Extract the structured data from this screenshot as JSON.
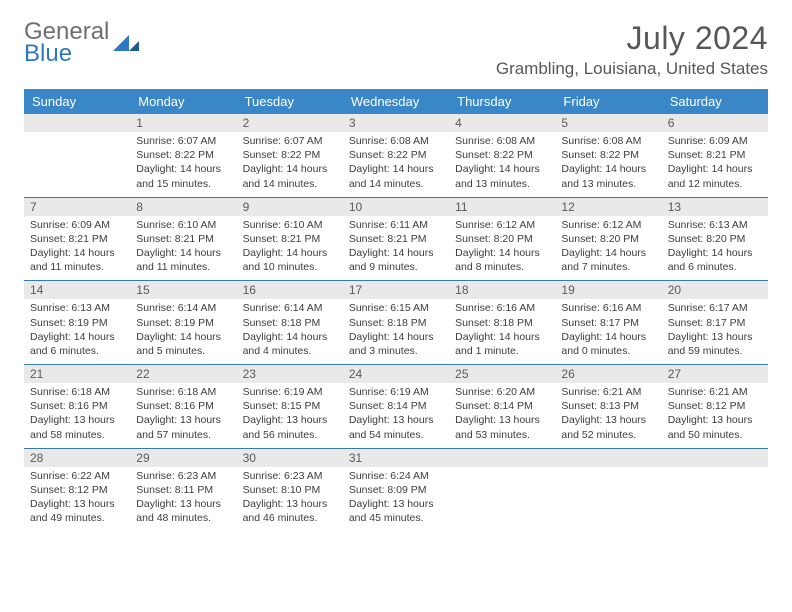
{
  "logo": {
    "word1": "General",
    "word2": "Blue"
  },
  "title": "July 2024",
  "location": "Grambling, Louisiana, United States",
  "colors": {
    "header_bg": "#3a87c8",
    "header_text": "#ffffff",
    "divider": "#3a78ad",
    "daynum_bg": "#e9e9e9",
    "text": "#3d3d3d",
    "title_text": "#575757",
    "logo_gray": "#6f6f6f",
    "logo_blue": "#2f78bd"
  },
  "weekdays": [
    "Sunday",
    "Monday",
    "Tuesday",
    "Wednesday",
    "Thursday",
    "Friday",
    "Saturday"
  ],
  "weeks": [
    {
      "days": [
        {
          "num": "",
          "lines": [
            "",
            "",
            "",
            ""
          ]
        },
        {
          "num": "1",
          "lines": [
            "Sunrise: 6:07 AM",
            "Sunset: 8:22 PM",
            "Daylight: 14 hours",
            "and 15 minutes."
          ]
        },
        {
          "num": "2",
          "lines": [
            "Sunrise: 6:07 AM",
            "Sunset: 8:22 PM",
            "Daylight: 14 hours",
            "and 14 minutes."
          ]
        },
        {
          "num": "3",
          "lines": [
            "Sunrise: 6:08 AM",
            "Sunset: 8:22 PM",
            "Daylight: 14 hours",
            "and 14 minutes."
          ]
        },
        {
          "num": "4",
          "lines": [
            "Sunrise: 6:08 AM",
            "Sunset: 8:22 PM",
            "Daylight: 14 hours",
            "and 13 minutes."
          ]
        },
        {
          "num": "5",
          "lines": [
            "Sunrise: 6:08 AM",
            "Sunset: 8:22 PM",
            "Daylight: 14 hours",
            "and 13 minutes."
          ]
        },
        {
          "num": "6",
          "lines": [
            "Sunrise: 6:09 AM",
            "Sunset: 8:21 PM",
            "Daylight: 14 hours",
            "and 12 minutes."
          ]
        }
      ]
    },
    {
      "days": [
        {
          "num": "7",
          "lines": [
            "Sunrise: 6:09 AM",
            "Sunset: 8:21 PM",
            "Daylight: 14 hours",
            "and 11 minutes."
          ]
        },
        {
          "num": "8",
          "lines": [
            "Sunrise: 6:10 AM",
            "Sunset: 8:21 PM",
            "Daylight: 14 hours",
            "and 11 minutes."
          ]
        },
        {
          "num": "9",
          "lines": [
            "Sunrise: 6:10 AM",
            "Sunset: 8:21 PM",
            "Daylight: 14 hours",
            "and 10 minutes."
          ]
        },
        {
          "num": "10",
          "lines": [
            "Sunrise: 6:11 AM",
            "Sunset: 8:21 PM",
            "Daylight: 14 hours",
            "and 9 minutes."
          ]
        },
        {
          "num": "11",
          "lines": [
            "Sunrise: 6:12 AM",
            "Sunset: 8:20 PM",
            "Daylight: 14 hours",
            "and 8 minutes."
          ]
        },
        {
          "num": "12",
          "lines": [
            "Sunrise: 6:12 AM",
            "Sunset: 8:20 PM",
            "Daylight: 14 hours",
            "and 7 minutes."
          ]
        },
        {
          "num": "13",
          "lines": [
            "Sunrise: 6:13 AM",
            "Sunset: 8:20 PM",
            "Daylight: 14 hours",
            "and 6 minutes."
          ]
        }
      ]
    },
    {
      "days": [
        {
          "num": "14",
          "lines": [
            "Sunrise: 6:13 AM",
            "Sunset: 8:19 PM",
            "Daylight: 14 hours",
            "and 6 minutes."
          ]
        },
        {
          "num": "15",
          "lines": [
            "Sunrise: 6:14 AM",
            "Sunset: 8:19 PM",
            "Daylight: 14 hours",
            "and 5 minutes."
          ]
        },
        {
          "num": "16",
          "lines": [
            "Sunrise: 6:14 AM",
            "Sunset: 8:18 PM",
            "Daylight: 14 hours",
            "and 4 minutes."
          ]
        },
        {
          "num": "17",
          "lines": [
            "Sunrise: 6:15 AM",
            "Sunset: 8:18 PM",
            "Daylight: 14 hours",
            "and 3 minutes."
          ]
        },
        {
          "num": "18",
          "lines": [
            "Sunrise: 6:16 AM",
            "Sunset: 8:18 PM",
            "Daylight: 14 hours",
            "and 1 minute."
          ]
        },
        {
          "num": "19",
          "lines": [
            "Sunrise: 6:16 AM",
            "Sunset: 8:17 PM",
            "Daylight: 14 hours",
            "and 0 minutes."
          ]
        },
        {
          "num": "20",
          "lines": [
            "Sunrise: 6:17 AM",
            "Sunset: 8:17 PM",
            "Daylight: 13 hours",
            "and 59 minutes."
          ]
        }
      ]
    },
    {
      "days": [
        {
          "num": "21",
          "lines": [
            "Sunrise: 6:18 AM",
            "Sunset: 8:16 PM",
            "Daylight: 13 hours",
            "and 58 minutes."
          ]
        },
        {
          "num": "22",
          "lines": [
            "Sunrise: 6:18 AM",
            "Sunset: 8:16 PM",
            "Daylight: 13 hours",
            "and 57 minutes."
          ]
        },
        {
          "num": "23",
          "lines": [
            "Sunrise: 6:19 AM",
            "Sunset: 8:15 PM",
            "Daylight: 13 hours",
            "and 56 minutes."
          ]
        },
        {
          "num": "24",
          "lines": [
            "Sunrise: 6:19 AM",
            "Sunset: 8:14 PM",
            "Daylight: 13 hours",
            "and 54 minutes."
          ]
        },
        {
          "num": "25",
          "lines": [
            "Sunrise: 6:20 AM",
            "Sunset: 8:14 PM",
            "Daylight: 13 hours",
            "and 53 minutes."
          ]
        },
        {
          "num": "26",
          "lines": [
            "Sunrise: 6:21 AM",
            "Sunset: 8:13 PM",
            "Daylight: 13 hours",
            "and 52 minutes."
          ]
        },
        {
          "num": "27",
          "lines": [
            "Sunrise: 6:21 AM",
            "Sunset: 8:12 PM",
            "Daylight: 13 hours",
            "and 50 minutes."
          ]
        }
      ]
    },
    {
      "days": [
        {
          "num": "28",
          "lines": [
            "Sunrise: 6:22 AM",
            "Sunset: 8:12 PM",
            "Daylight: 13 hours",
            "and 49 minutes."
          ]
        },
        {
          "num": "29",
          "lines": [
            "Sunrise: 6:23 AM",
            "Sunset: 8:11 PM",
            "Daylight: 13 hours",
            "and 48 minutes."
          ]
        },
        {
          "num": "30",
          "lines": [
            "Sunrise: 6:23 AM",
            "Sunset: 8:10 PM",
            "Daylight: 13 hours",
            "and 46 minutes."
          ]
        },
        {
          "num": "31",
          "lines": [
            "Sunrise: 6:24 AM",
            "Sunset: 8:09 PM",
            "Daylight: 13 hours",
            "and 45 minutes."
          ]
        },
        {
          "num": "",
          "lines": [
            "",
            "",
            "",
            ""
          ]
        },
        {
          "num": "",
          "lines": [
            "",
            "",
            "",
            ""
          ]
        },
        {
          "num": "",
          "lines": [
            "",
            "",
            "",
            ""
          ]
        }
      ]
    }
  ]
}
